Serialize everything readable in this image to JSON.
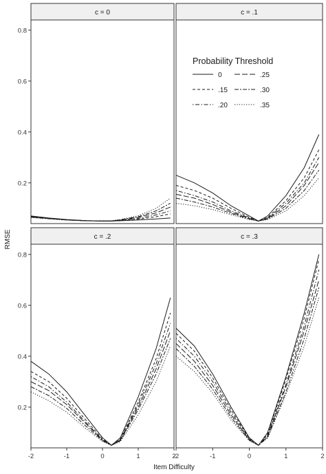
{
  "chart_data": {
    "type": "line",
    "layout": "facet-grid 2x2",
    "xlabel": "Item Difficulty",
    "ylabel": "RMSE",
    "xlim": [
      -2,
      2
    ],
    "ylim": [
      0.04,
      0.84
    ],
    "x_ticks": [
      -2,
      -1,
      0,
      1,
      2
    ],
    "x_tick_labels": [
      "-2",
      "-1",
      "0",
      "1",
      "2"
    ],
    "y_ticks": [
      0.2,
      0.4,
      0.6,
      0.8
    ],
    "y_tick_labels": [
      "0.2",
      "0.4",
      "0.6",
      "0.8"
    ],
    "grid": false,
    "legend": {
      "title": "Probability Threshold",
      "placement": "inside top-right panel, top",
      "entries": [
        {
          "label": "0",
          "dash": "solid"
        },
        {
          "label": ".15",
          "dash": "dashed"
        },
        {
          "label": ".20",
          "dash": "dotdash"
        },
        {
          "label": ".25",
          "dash": "longdash"
        },
        {
          "label": ".30",
          "dash": "twodash"
        },
        {
          "label": ".35",
          "dash": "dotted"
        }
      ]
    },
    "x": [
      -2,
      -1.5,
      -1,
      -0.5,
      0,
      0.25,
      0.5,
      1,
      1.5,
      1.9
    ],
    "panels": [
      {
        "title": "c = 0",
        "series": [
          {
            "name": "0",
            "values": [
              0.07,
              0.062,
              0.056,
              0.052,
              0.05,
              0.05,
              0.051,
              0.054,
              0.058,
              0.062
            ]
          },
          {
            "name": ".15",
            "values": [
              0.068,
              0.061,
              0.055,
              0.052,
              0.05,
              0.05,
              0.052,
              0.057,
              0.067,
              0.078
            ]
          },
          {
            "name": ".20",
            "values": [
              0.067,
              0.06,
              0.055,
              0.051,
              0.05,
              0.05,
              0.053,
              0.06,
              0.074,
              0.09
            ]
          },
          {
            "name": ".25",
            "values": [
              0.066,
              0.06,
              0.054,
              0.051,
              0.05,
              0.05,
              0.054,
              0.064,
              0.082,
              0.105
            ]
          },
          {
            "name": ".30",
            "values": [
              0.065,
              0.059,
              0.054,
              0.051,
              0.05,
              0.05,
              0.055,
              0.067,
              0.09,
              0.12
            ]
          },
          {
            "name": ".35",
            "values": [
              0.064,
              0.059,
              0.054,
              0.051,
              0.05,
              0.051,
              0.056,
              0.071,
              0.1,
              0.14
            ]
          }
        ]
      },
      {
        "title": "c = .1",
        "series": [
          {
            "name": "0",
            "values": [
              0.23,
              0.2,
              0.16,
              0.11,
              0.07,
              0.05,
              0.07,
              0.15,
              0.26,
              0.39
            ]
          },
          {
            "name": ".15",
            "values": [
              0.19,
              0.17,
              0.14,
              0.1,
              0.065,
              0.05,
              0.065,
              0.13,
              0.22,
              0.33
            ]
          },
          {
            "name": ".20",
            "values": [
              0.17,
              0.15,
              0.125,
              0.09,
              0.062,
              0.05,
              0.062,
              0.12,
              0.2,
              0.3
            ]
          },
          {
            "name": ".25",
            "values": [
              0.155,
              0.14,
              0.115,
              0.085,
              0.06,
              0.05,
              0.06,
              0.11,
              0.19,
              0.28
            ]
          },
          {
            "name": ".30",
            "values": [
              0.14,
              0.125,
              0.105,
              0.08,
              0.058,
              0.05,
              0.058,
              0.1,
              0.17,
              0.25
            ]
          },
          {
            "name": ".35",
            "values": [
              0.12,
              0.11,
              0.095,
              0.075,
              0.056,
              0.05,
              0.056,
              0.09,
              0.15,
              0.22
            ]
          }
        ]
      },
      {
        "title": "c = .2",
        "series": [
          {
            "name": "0",
            "values": [
              0.38,
              0.33,
              0.26,
              0.17,
              0.08,
              0.05,
              0.08,
              0.24,
              0.43,
              0.63
            ]
          },
          {
            "name": ".15",
            "values": [
              0.34,
              0.3,
              0.235,
              0.155,
              0.075,
              0.05,
              0.075,
              0.22,
              0.39,
              0.57
            ]
          },
          {
            "name": ".20",
            "values": [
              0.32,
              0.28,
              0.22,
              0.145,
              0.072,
              0.05,
              0.072,
              0.21,
              0.37,
              0.53
            ]
          },
          {
            "name": ".25",
            "values": [
              0.3,
              0.265,
              0.21,
              0.14,
              0.07,
              0.05,
              0.07,
              0.2,
              0.35,
              0.5
            ]
          },
          {
            "name": ".30",
            "values": [
              0.28,
              0.245,
              0.195,
              0.13,
              0.068,
              0.05,
              0.068,
              0.19,
              0.33,
              0.47
            ]
          },
          {
            "name": ".35",
            "values": [
              0.26,
              0.225,
              0.18,
              0.12,
              0.065,
              0.05,
              0.065,
              0.17,
              0.3,
              0.44
            ]
          }
        ]
      },
      {
        "title": "c = .3",
        "series": [
          {
            "name": "0",
            "values": [
              0.51,
              0.44,
              0.33,
              0.2,
              0.08,
              0.05,
              0.1,
              0.32,
              0.57,
              0.8
            ]
          },
          {
            "name": ".15",
            "values": [
              0.49,
              0.42,
              0.315,
              0.19,
              0.078,
              0.05,
              0.095,
              0.31,
              0.55,
              0.78
            ]
          },
          {
            "name": ".20",
            "values": [
              0.47,
              0.4,
              0.3,
              0.18,
              0.075,
              0.05,
              0.09,
              0.29,
              0.52,
              0.74
            ]
          },
          {
            "name": ".25",
            "values": [
              0.45,
              0.38,
              0.285,
              0.17,
              0.072,
              0.05,
              0.085,
              0.28,
              0.5,
              0.7
            ]
          },
          {
            "name": ".30",
            "values": [
              0.43,
              0.36,
              0.27,
              0.16,
              0.07,
              0.05,
              0.082,
              0.26,
              0.47,
              0.67
            ]
          },
          {
            "name": ".35",
            "values": [
              0.4,
              0.34,
              0.255,
              0.15,
              0.068,
              0.05,
              0.078,
              0.25,
              0.44,
              0.63
            ]
          }
        ]
      }
    ]
  }
}
